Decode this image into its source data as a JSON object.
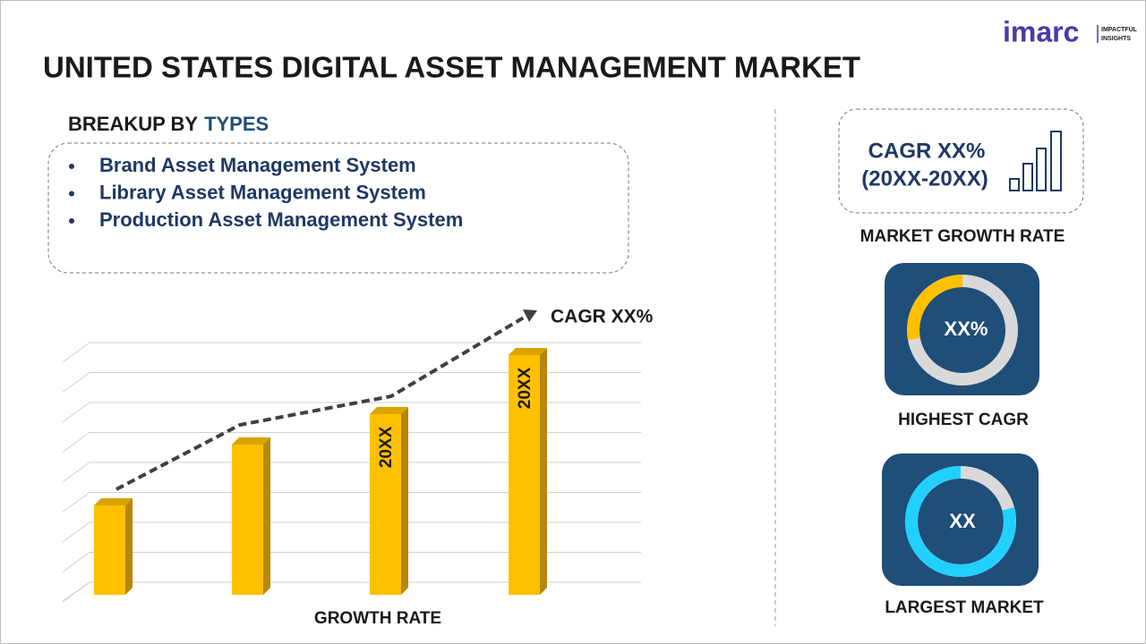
{
  "header": {
    "title": "UNITED STATES DIGITAL ASSET MANAGEMENT MARKET",
    "logo": {
      "name": "imarc",
      "tagline": [
        "IMPACTFUL",
        "INSIGHTS"
      ]
    }
  },
  "breakup": {
    "heading": "BREAKUP BY",
    "heading_highlight": "TYPES",
    "items": [
      "Brand Asset Management System",
      "Library Asset Management System",
      "Production Asset Management System"
    ]
  },
  "chart": {
    "trend_label": "CAGR XX%",
    "bar_labels": [
      "20XX",
      "20XX"
    ],
    "axis_label": "GROWTH RATE"
  },
  "sidebar": {
    "growth": {
      "cagr": "CAGR XX%",
      "period": "(20XX-20XX)",
      "caption": "MARKET GROWTH RATE"
    },
    "highest": {
      "value": "XX%",
      "caption": "HIGHEST CAGR"
    },
    "largest": {
      "value": "XX",
      "caption": "LARGEST MARKET"
    }
  }
}
